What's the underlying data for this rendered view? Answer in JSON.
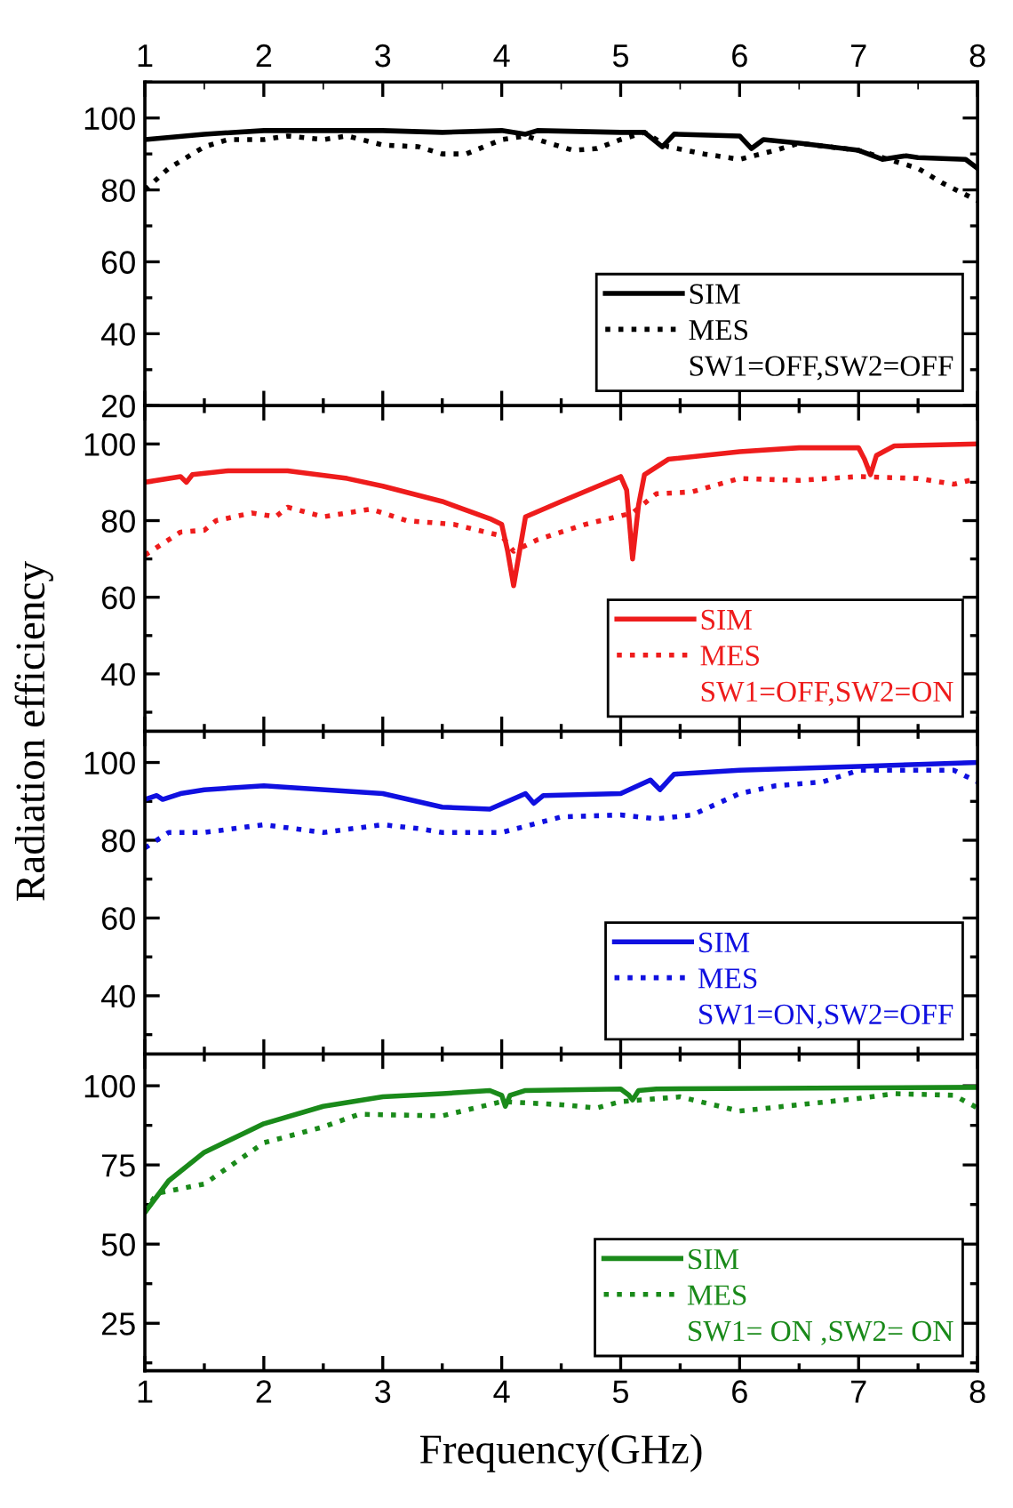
{
  "chart_data": [
    {
      "type": "line",
      "xlim": [
        1,
        8
      ],
      "x2lim": [
        1,
        8
      ],
      "x2ticks": [
        1,
        2,
        3,
        4,
        5,
        6,
        7,
        8
      ],
      "ylim": [
        20,
        110
      ],
      "yticks": [
        20,
        40,
        60,
        80,
        100
      ],
      "tick_labels": "y",
      "legend": "bottom right",
      "legend_title": "SW1=OFF,SW2=OFF",
      "grid": false,
      "marker": "none",
      "series": [
        {
          "name": "SIM",
          "color": "#000000",
          "line_style": "solid",
          "x": [
            1,
            1.5,
            2,
            3,
            3.5,
            4,
            4.2,
            4.3,
            5,
            5.2,
            5.35,
            5.45,
            6,
            6.1,
            6.2,
            6.5,
            7,
            7.2,
            7.4,
            7.5,
            7.9,
            8
          ],
          "values": [
            94,
            95.5,
            96.5,
            96.5,
            96,
            96.5,
            95.5,
            96.5,
            96,
            96,
            92,
            95.5,
            95,
            91.5,
            94,
            93,
            91,
            88.5,
            89.5,
            89,
            88.5,
            86
          ]
        },
        {
          "name": "MES",
          "color": "#000000",
          "line_style": "dotted",
          "x": [
            1,
            1.2,
            1.5,
            1.7,
            2,
            2.2,
            2.5,
            2.7,
            3,
            3.3,
            3.5,
            3.7,
            4,
            4.2,
            4.4,
            4.6,
            4.8,
            5,
            5.2,
            5.4,
            5.7,
            6,
            6.3,
            6.5,
            7,
            7.3,
            7.5,
            7.7,
            8
          ],
          "values": [
            80,
            86,
            92,
            94,
            94,
            95,
            94,
            95,
            92.5,
            92,
            90,
            90,
            94,
            95,
            93,
            91,
            91.5,
            94,
            96,
            92,
            90,
            88.5,
            91,
            93,
            91,
            88,
            86,
            82,
            77
          ]
        }
      ]
    },
    {
      "type": "line",
      "xlim": [
        1,
        8
      ],
      "ylim": [
        25,
        110
      ],
      "yticks": [
        40,
        60,
        80,
        100
      ],
      "tick_labels": "y",
      "ylabel": "Radiation efficiency",
      "legend": "bottom right",
      "legend_title": "SW1=OFF,SW2=ON",
      "grid": false,
      "marker": "none",
      "series": [
        {
          "name": "SIM",
          "color": "#ee1c1c",
          "line_style": "solid",
          "x": [
            1,
            1.3,
            1.35,
            1.4,
            1.7,
            2.2,
            2.7,
            3,
            3.5,
            3.9,
            4.0,
            4.05,
            4.1,
            4.15,
            4.2,
            4.5,
            5,
            5.05,
            5.1,
            5.15,
            5.2,
            5.4,
            6,
            6.5,
            7,
            7.05,
            7.1,
            7.15,
            7.3,
            8
          ],
          "values": [
            90,
            91.5,
            90,
            92,
            93,
            93,
            91,
            89,
            85,
            80.5,
            79,
            72,
            63,
            72,
            81,
            85,
            91.5,
            88,
            70,
            84,
            92,
            96,
            98,
            99,
            99,
            96,
            92,
            97,
            99.5,
            100
          ]
        },
        {
          "name": "MES",
          "color": "#ee1c1c",
          "line_style": "dotted",
          "x": [
            1,
            1.3,
            1.5,
            1.6,
            1.9,
            2.1,
            2.2,
            2.5,
            2.9,
            3.2,
            3.6,
            4,
            4.1,
            4.3,
            4.7,
            5.1,
            5.3,
            5.6,
            6,
            6.5,
            7,
            7.5,
            7.8,
            8
          ],
          "values": [
            71,
            77,
            77.5,
            80,
            82,
            81,
            83.5,
            81,
            83,
            80,
            79,
            76,
            72,
            75,
            79,
            82,
            87,
            87.5,
            91,
            90.5,
            91.5,
            91,
            89.5,
            91
          ]
        }
      ]
    },
    {
      "type": "line",
      "xlim": [
        1,
        8
      ],
      "ylim": [
        25,
        108
      ],
      "yticks": [
        40,
        60,
        80,
        100
      ],
      "tick_labels": "y",
      "legend": "bottom right",
      "legend_title": "SW1=ON,SW2=OFF",
      "grid": false,
      "marker": "none",
      "series": [
        {
          "name": "SIM",
          "color": "#1010e0",
          "line_style": "solid",
          "x": [
            1,
            1.1,
            1.15,
            1.3,
            1.5,
            2,
            3,
            3.5,
            3.9,
            4.2,
            4.27,
            4.35,
            5,
            5.25,
            5.33,
            5.45,
            6,
            7,
            7.5,
            8
          ],
          "values": [
            90.5,
            91.5,
            90.5,
            92,
            93,
            94,
            92,
            88.5,
            88,
            92,
            89.5,
            91.5,
            92,
            95.5,
            93,
            97,
            98,
            99,
            99.5,
            100
          ]
        },
        {
          "name": "MES",
          "color": "#1010e0",
          "line_style": "dotted",
          "x": [
            1,
            1.2,
            1.5,
            2,
            2.5,
            3,
            3.3,
            3.5,
            4,
            4.5,
            5,
            5.3,
            5.6,
            6,
            6.3,
            6.7,
            7,
            7.5,
            7.8,
            8
          ],
          "values": [
            78,
            82,
            82,
            84,
            82,
            84,
            83,
            82,
            82,
            86,
            86.5,
            85.5,
            86.5,
            92,
            94,
            95,
            98,
            98,
            98,
            95
          ]
        }
      ]
    },
    {
      "type": "line",
      "xlim": [
        1,
        8
      ],
      "xticks": [
        1,
        2,
        3,
        4,
        5,
        6,
        7,
        8
      ],
      "ylim": [
        10,
        110
      ],
      "yticks": [
        25,
        50,
        75,
        100
      ],
      "xlabel": "Frequency(GHz)",
      "legend": "bottom right",
      "legend_title": "SW1= ON ,SW2= ON",
      "grid": false,
      "marker": "none",
      "series": [
        {
          "name": "SIM",
          "color": "#1a8a1a",
          "line_style": "solid",
          "x": [
            1,
            1.2,
            1.5,
            2,
            2.5,
            3,
            3.5,
            3.9,
            4.0,
            4.03,
            4.07,
            4.2,
            5,
            5.07,
            5.1,
            5.15,
            5.3,
            8
          ],
          "values": [
            60,
            70,
            79,
            88,
            93.5,
            96.5,
            97.5,
            98.5,
            97,
            93.5,
            97,
            98.5,
            99,
            97,
            95.5,
            98.5,
            99,
            99.5
          ]
        },
        {
          "name": "MES",
          "color": "#1a8a1a",
          "line_style": "dotted",
          "x": [
            1,
            1.1,
            1.5,
            2,
            2.5,
            2.8,
            3.5,
            4,
            4.5,
            4.8,
            5,
            5.5,
            6,
            6.5,
            7,
            7.3,
            7.8,
            8
          ],
          "values": [
            60,
            66,
            69,
            82,
            87,
            91,
            90.5,
            95,
            94,
            93,
            95,
            96.5,
            92,
            94,
            96,
            97.5,
            97,
            93
          ]
        }
      ]
    }
  ]
}
